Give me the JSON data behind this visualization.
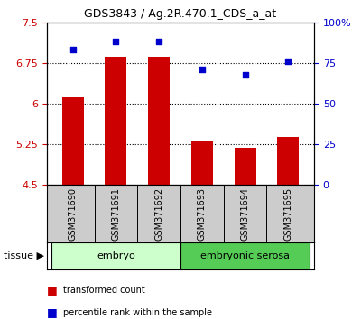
{
  "title": "GDS3843 / Ag.2R.470.1_CDS_a_at",
  "samples": [
    "GSM371690",
    "GSM371691",
    "GSM371692",
    "GSM371693",
    "GSM371694",
    "GSM371695"
  ],
  "bar_values": [
    6.12,
    6.87,
    6.87,
    5.3,
    5.18,
    5.38
  ],
  "scatter_values": [
    83,
    88,
    88,
    71,
    68,
    76
  ],
  "bar_color": "#cc0000",
  "scatter_color": "#0000cc",
  "ylim_left": [
    4.5,
    7.5
  ],
  "ylim_right": [
    0,
    100
  ],
  "yticks_left": [
    4.5,
    5.25,
    6.0,
    6.75,
    7.5
  ],
  "ytick_labels_left": [
    "4.5",
    "5.25",
    "6",
    "6.75",
    "7.5"
  ],
  "yticks_right": [
    0,
    25,
    50,
    75,
    100
  ],
  "ytick_labels_right": [
    "0",
    "25",
    "50",
    "75",
    "100%"
  ],
  "hlines": [
    5.25,
    6.0,
    6.75
  ],
  "groups": [
    {
      "label": "embryo",
      "indices": [
        0,
        1,
        2
      ],
      "color": "#ccffcc"
    },
    {
      "label": "embryonic serosa",
      "indices": [
        3,
        4,
        5
      ],
      "color": "#55cc55"
    }
  ],
  "tissue_label": "tissue",
  "legend_items": [
    {
      "label": "transformed count",
      "color": "#cc0000"
    },
    {
      "label": "percentile rank within the sample",
      "color": "#0000cc"
    }
  ],
  "bar_width": 0.5,
  "background_color": "#ffffff",
  "tick_label_color_left": "#cc0000",
  "tick_label_color_right": "#0000cc",
  "sample_box_color": "#cccccc"
}
